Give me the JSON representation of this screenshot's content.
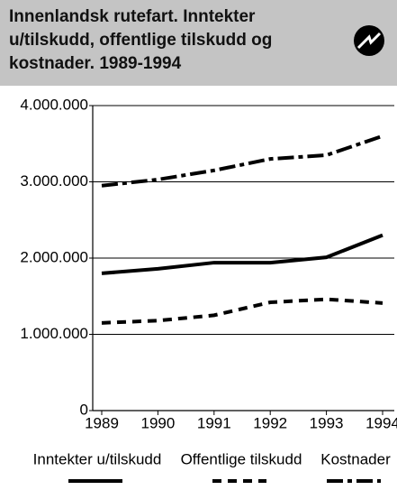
{
  "chart_data": {
    "type": "line",
    "title": "Innenlandsk rutefart. Inntekter u/tilskudd, offentlige tilskudd og kostnader. 1989-1994",
    "categories": [
      "1989",
      "1990",
      "1991",
      "1992",
      "1993",
      "1994"
    ],
    "series": [
      {
        "name": "Inntekter u/tilskudd",
        "color": "#000000",
        "dash": "solid",
        "values": [
          1800000,
          1860000,
          1940000,
          1940000,
          2010000,
          2300000
        ]
      },
      {
        "name": "Offentlige tilskudd",
        "color": "#000000",
        "dash": "dashed",
        "values": [
          1150000,
          1180000,
          1250000,
          1420000,
          1460000,
          1410000
        ]
      },
      {
        "name": "Kostnader",
        "color": "#000000",
        "dash": "dashdot",
        "values": [
          2950000,
          3030000,
          3150000,
          3300000,
          3350000,
          3600000
        ]
      }
    ],
    "ylim": [
      0,
      4000000
    ],
    "yticks": [
      0,
      {
        "value": 1000000,
        "label": "1.000.000"
      },
      {
        "value": 2000000,
        "label": "2.000.000"
      },
      {
        "value": 3000000,
        "label": "3.000.000"
      },
      {
        "value": 4000000,
        "label": "4.000.000"
      }
    ],
    "grid": true
  }
}
